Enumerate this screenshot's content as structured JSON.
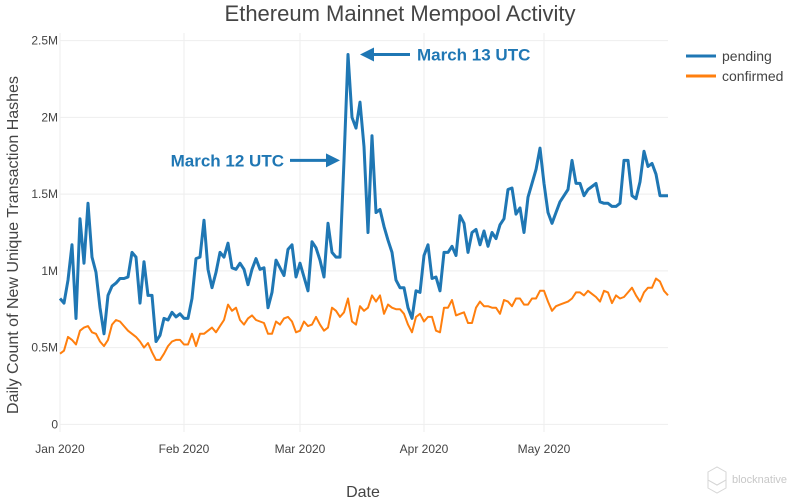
{
  "chart_data": {
    "type": "line",
    "title": "Ethereum Mainnet Mempool Activity",
    "xlabel": "Date",
    "ylabel": "Daily Count of New Unique Transaction Hashes",
    "ylim": [
      -50000,
      2550000
    ],
    "xlim": [
      "2020-01-01",
      "2020-06-01"
    ],
    "grid": true,
    "legend_position": "top-right",
    "y_ticks": [
      {
        "value": 0,
        "label": "0"
      },
      {
        "value": 500000,
        "label": "0.5M"
      },
      {
        "value": 1000000,
        "label": "1M"
      },
      {
        "value": 1500000,
        "label": "1.5M"
      },
      {
        "value": 2000000,
        "label": "2M"
      },
      {
        "value": 2500000,
        "label": "2.5M"
      }
    ],
    "x_ticks": [
      {
        "value": "2020-01-01",
        "label": "Jan 2020"
      },
      {
        "value": "2020-02-01",
        "label": "Feb 2020"
      },
      {
        "value": "2020-03-01",
        "label": "Mar 2020"
      },
      {
        "value": "2020-04-01",
        "label": "Apr 2020"
      },
      {
        "value": "2020-05-01",
        "label": "May 2020"
      }
    ],
    "x": [
      "2020-01-01",
      "2020-01-02",
      "2020-01-03",
      "2020-01-04",
      "2020-01-05",
      "2020-01-06",
      "2020-01-07",
      "2020-01-08",
      "2020-01-09",
      "2020-01-10",
      "2020-01-11",
      "2020-01-12",
      "2020-01-13",
      "2020-01-14",
      "2020-01-15",
      "2020-01-16",
      "2020-01-17",
      "2020-01-18",
      "2020-01-19",
      "2020-01-20",
      "2020-01-21",
      "2020-01-22",
      "2020-01-23",
      "2020-01-24",
      "2020-01-25",
      "2020-01-26",
      "2020-01-27",
      "2020-01-28",
      "2020-01-29",
      "2020-01-30",
      "2020-01-31",
      "2020-02-01",
      "2020-02-02",
      "2020-02-03",
      "2020-02-04",
      "2020-02-05",
      "2020-02-06",
      "2020-02-07",
      "2020-02-08",
      "2020-02-09",
      "2020-02-10",
      "2020-02-11",
      "2020-02-12",
      "2020-02-13",
      "2020-02-14",
      "2020-02-15",
      "2020-02-16",
      "2020-02-17",
      "2020-02-18",
      "2020-02-19",
      "2020-02-20",
      "2020-02-21",
      "2020-02-22",
      "2020-02-23",
      "2020-02-24",
      "2020-02-25",
      "2020-02-26",
      "2020-02-27",
      "2020-02-28",
      "2020-02-29",
      "2020-03-01",
      "2020-03-02",
      "2020-03-03",
      "2020-03-04",
      "2020-03-05",
      "2020-03-06",
      "2020-03-07",
      "2020-03-08",
      "2020-03-09",
      "2020-03-10",
      "2020-03-11",
      "2020-03-12",
      "2020-03-13",
      "2020-03-14",
      "2020-03-15",
      "2020-03-16",
      "2020-03-17",
      "2020-03-18",
      "2020-03-19",
      "2020-03-20",
      "2020-03-21",
      "2020-03-22",
      "2020-03-23",
      "2020-03-24",
      "2020-03-25",
      "2020-03-26",
      "2020-03-27",
      "2020-03-28",
      "2020-03-29",
      "2020-03-30",
      "2020-03-31",
      "2020-04-01",
      "2020-04-02",
      "2020-04-03",
      "2020-04-04",
      "2020-04-05",
      "2020-04-06",
      "2020-04-07",
      "2020-04-08",
      "2020-04-09",
      "2020-04-10",
      "2020-04-11",
      "2020-04-12",
      "2020-04-13",
      "2020-04-14",
      "2020-04-15",
      "2020-04-16",
      "2020-04-17",
      "2020-04-18",
      "2020-04-19",
      "2020-04-20",
      "2020-04-21",
      "2020-04-22",
      "2020-04-23",
      "2020-04-24",
      "2020-04-25",
      "2020-04-26",
      "2020-04-27",
      "2020-04-28",
      "2020-04-29",
      "2020-04-30",
      "2020-05-01",
      "2020-05-02",
      "2020-05-03",
      "2020-05-04",
      "2020-05-05",
      "2020-05-06",
      "2020-05-07",
      "2020-05-08",
      "2020-05-09",
      "2020-05-10",
      "2020-05-11",
      "2020-05-12",
      "2020-05-13",
      "2020-05-14",
      "2020-05-15",
      "2020-05-16",
      "2020-05-17",
      "2020-05-18",
      "2020-05-19",
      "2020-05-20",
      "2020-05-21",
      "2020-05-22",
      "2020-05-23",
      "2020-05-24",
      "2020-05-25",
      "2020-05-26",
      "2020-05-27",
      "2020-05-28",
      "2020-05-29",
      "2020-05-30",
      "2020-05-31",
      "2020-06-01"
    ],
    "series": [
      {
        "name": "pending",
        "color": "#1f77b4",
        "values": [
          820000,
          790000,
          940000,
          1170000,
          690000,
          1340000,
          1050000,
          1440000,
          1090000,
          990000,
          760000,
          590000,
          840000,
          900000,
          920000,
          950000,
          950000,
          960000,
          1120000,
          1090000,
          790000,
          1060000,
          840000,
          840000,
          540000,
          580000,
          690000,
          680000,
          730000,
          700000,
          720000,
          690000,
          690000,
          820000,
          1080000,
          1090000,
          1330000,
          1010000,
          890000,
          990000,
          1120000,
          1090000,
          1180000,
          1020000,
          1010000,
          1050000,
          1010000,
          910000,
          1010000,
          1080000,
          1010000,
          1020000,
          760000,
          860000,
          1070000,
          1020000,
          970000,
          1140000,
          1170000,
          960000,
          1050000,
          960000,
          870000,
          1190000,
          1150000,
          1070000,
          960000,
          1310000,
          1120000,
          1090000,
          1090000,
          1720000,
          2410000,
          2000000,
          1930000,
          2100000,
          1810000,
          1250000,
          1880000,
          1380000,
          1400000,
          1290000,
          1200000,
          1120000,
          940000,
          890000,
          890000,
          760000,
          690000,
          870000,
          860000,
          1100000,
          1170000,
          950000,
          960000,
          870000,
          1120000,
          1120000,
          1160000,
          1100000,
          1360000,
          1310000,
          1120000,
          1250000,
          1270000,
          1170000,
          1260000,
          1160000,
          1250000,
          1210000,
          1300000,
          1340000,
          1530000,
          1540000,
          1370000,
          1410000,
          1250000,
          1480000,
          1570000,
          1660000,
          1800000,
          1570000,
          1380000,
          1310000,
          1380000,
          1450000,
          1490000,
          1530000,
          1720000,
          1570000,
          1570000,
          1490000,
          1530000,
          1550000,
          1570000,
          1450000,
          1440000,
          1440000,
          1420000,
          1420000,
          1440000,
          1720000,
          1720000,
          1490000,
          1470000,
          1580000,
          1780000,
          1680000,
          1700000,
          1630000,
          1490000,
          1490000,
          1490000
        ]
      },
      {
        "name": "confirmed",
        "color": "#ff7f0e",
        "values": [
          460000,
          480000,
          570000,
          550000,
          520000,
          610000,
          630000,
          640000,
          600000,
          590000,
          540000,
          510000,
          550000,
          650000,
          680000,
          670000,
          640000,
          610000,
          590000,
          570000,
          540000,
          500000,
          530000,
          470000,
          420000,
          420000,
          460000,
          510000,
          540000,
          550000,
          550000,
          520000,
          520000,
          590000,
          510000,
          590000,
          590000,
          610000,
          630000,
          600000,
          640000,
          680000,
          780000,
          740000,
          760000,
          680000,
          650000,
          690000,
          710000,
          680000,
          670000,
          660000,
          590000,
          590000,
          670000,
          650000,
          690000,
          700000,
          670000,
          600000,
          610000,
          670000,
          640000,
          650000,
          700000,
          650000,
          610000,
          630000,
          760000,
          740000,
          700000,
          730000,
          820000,
          670000,
          650000,
          770000,
          740000,
          760000,
          840000,
          800000,
          840000,
          720000,
          780000,
          760000,
          750000,
          750000,
          720000,
          650000,
          600000,
          700000,
          720000,
          670000,
          700000,
          700000,
          610000,
          600000,
          760000,
          760000,
          810000,
          710000,
          720000,
          730000,
          660000,
          660000,
          760000,
          800000,
          770000,
          770000,
          760000,
          760000,
          720000,
          810000,
          800000,
          770000,
          820000,
          820000,
          780000,
          780000,
          820000,
          820000,
          870000,
          870000,
          800000,
          740000,
          770000,
          780000,
          790000,
          800000,
          820000,
          860000,
          860000,
          840000,
          870000,
          850000,
          830000,
          800000,
          870000,
          860000,
          790000,
          840000,
          820000,
          830000,
          860000,
          890000,
          840000,
          800000,
          860000,
          890000,
          890000,
          950000,
          930000,
          870000,
          840000
        ]
      }
    ],
    "annotations": [
      {
        "text": "March 12 UTC",
        "x": "2020-03-12",
        "y": 1720000,
        "color": "#1f77b4"
      },
      {
        "text": "March 13 UTC",
        "x": "2020-03-13",
        "y": 2410000,
        "color": "#1f77b4"
      }
    ]
  },
  "watermark": {
    "text": "blocknative",
    "icon": "blocknative-logo-icon"
  }
}
